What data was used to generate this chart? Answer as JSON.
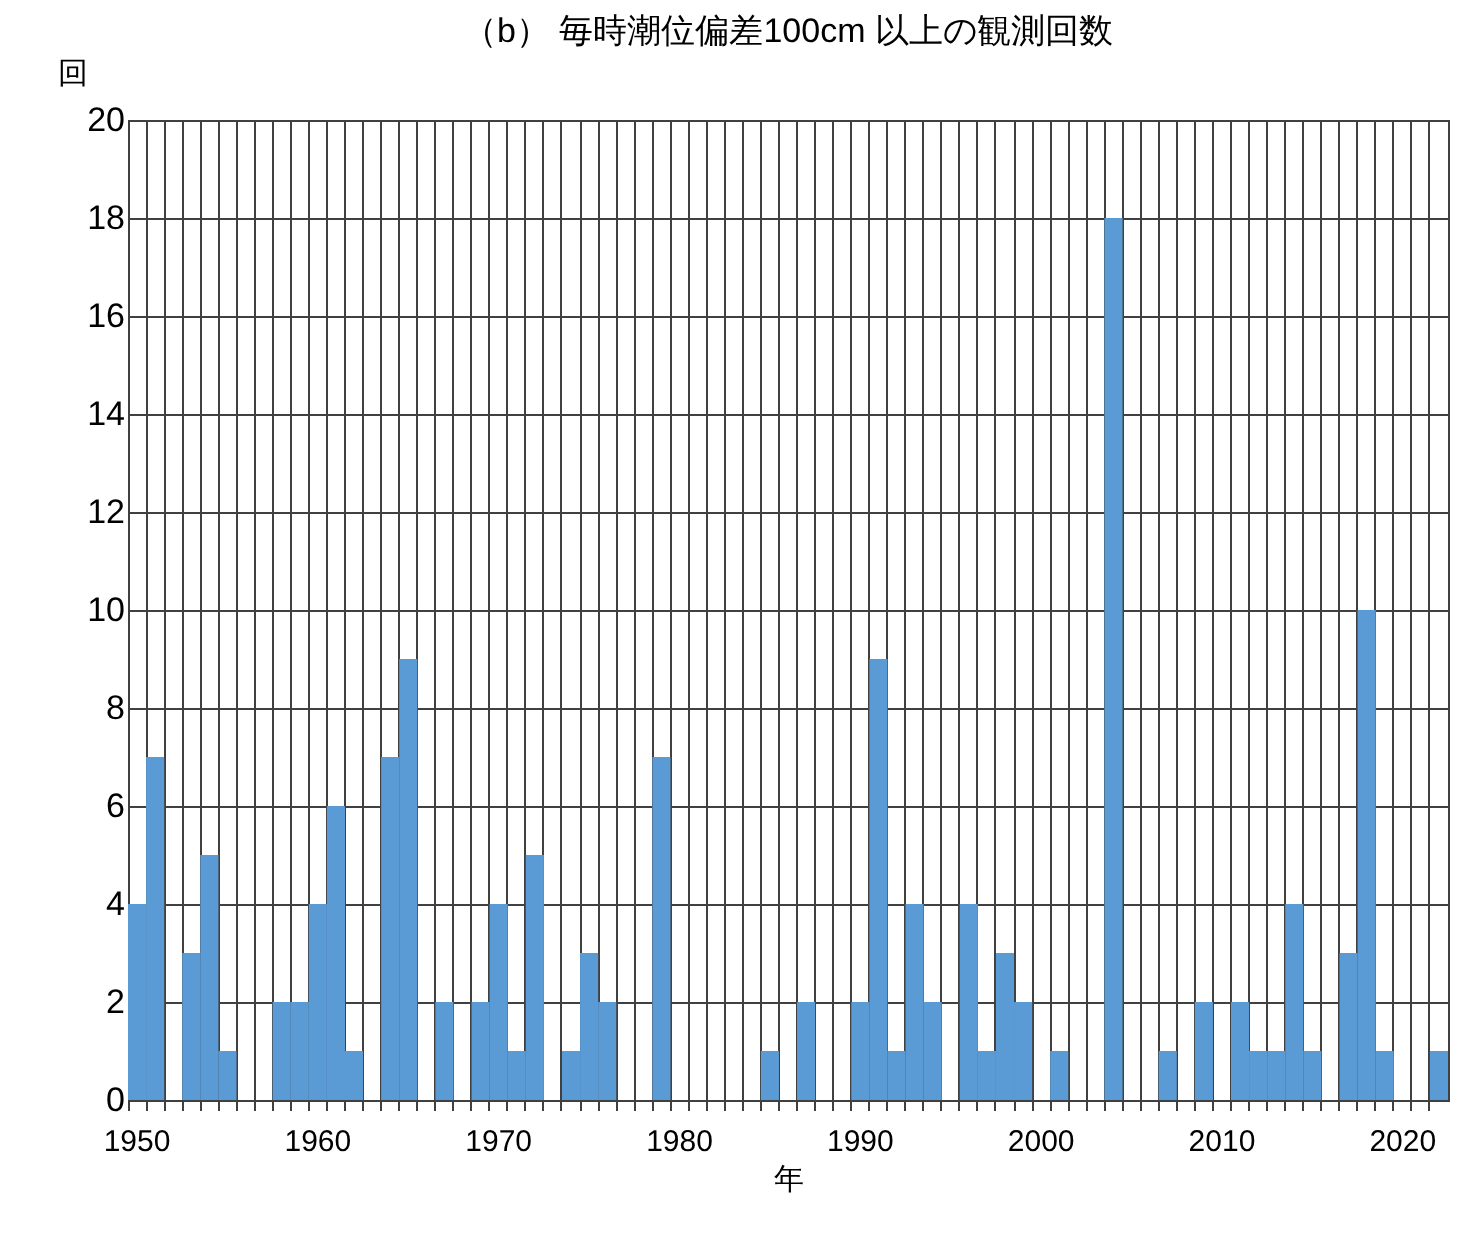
{
  "chart_data": {
    "type": "bar",
    "title": "（b） 毎時潮位偏差100cm 以上の観測回数",
    "xlabel": "年",
    "ylabel": "回",
    "categories": [
      "1950",
      null,
      null,
      null,
      null,
      null,
      null,
      null,
      null,
      null,
      "1960",
      null,
      null,
      null,
      null,
      null,
      null,
      null,
      null,
      null,
      "1970",
      null,
      null,
      null,
      null,
      null,
      null,
      null,
      null,
      null,
      "1980",
      null,
      null,
      null,
      null,
      null,
      null,
      null,
      null,
      null,
      "1990",
      null,
      null,
      null,
      null,
      null,
      null,
      null,
      null,
      null,
      "2000",
      null,
      null,
      null,
      null,
      null,
      null,
      null,
      null,
      null,
      "2010",
      null,
      null,
      null,
      null,
      null,
      null,
      null,
      null,
      null,
      "2020",
      null,
      null
    ],
    "values": [
      4,
      7,
      0,
      3,
      5,
      1,
      0,
      0,
      2,
      2,
      4,
      6,
      1,
      0,
      7,
      9,
      0,
      2,
      0,
      2,
      4,
      1,
      5,
      0,
      1,
      3,
      2,
      0,
      0,
      7,
      0,
      0,
      0,
      0,
      0,
      1,
      0,
      2,
      0,
      0,
      2,
      9,
      1,
      4,
      2,
      0,
      4,
      1,
      3,
      2,
      0,
      1,
      0,
      0,
      18,
      0,
      0,
      1,
      0,
      2,
      0,
      2,
      1,
      1,
      4,
      1,
      0,
      3,
      10,
      1,
      0,
      0,
      1
    ],
    "color": "#5b9bd5",
    "ylim": [
      0,
      20
    ],
    "yticks": [
      0,
      2,
      4,
      6,
      8,
      10,
      12,
      14,
      16,
      18,
      20
    ],
    "grid": true
  }
}
